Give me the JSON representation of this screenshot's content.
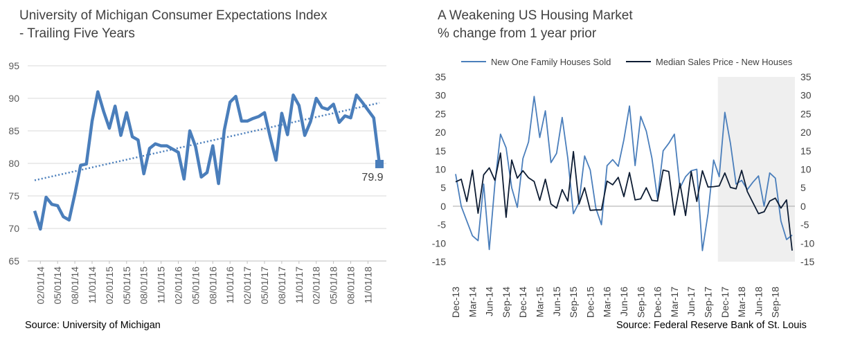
{
  "left": {
    "title_line1": "University of Michigan Consumer Expectations Index",
    "title_line2": "- Trailing Five Years",
    "source": "Source: University of Michigan",
    "end_label": "79.9",
    "colors": {
      "line": "#4a7ebb",
      "trend": "#4a7ebb"
    }
  },
  "right": {
    "title_line1": "A Weakening US Housing Market",
    "title_line2": "% change from 1 year prior",
    "source": "Source: Federal Reserve Bank of St. Louis",
    "colors": {
      "sold": "#4a7ebb",
      "price": "#0d1c33",
      "shade": "#efefef"
    }
  },
  "chart_data": [
    {
      "type": "line",
      "title": "University of Michigan Consumer Expectations Index - Trailing Five Years",
      "ylim": [
        65,
        95
      ],
      "yticks": [
        65,
        70,
        75,
        80,
        85,
        90,
        95
      ],
      "grid": true,
      "x_tick_labels": [
        "02/01/14",
        "05/01/14",
        "08/01/14",
        "11/01/14",
        "02/01/15",
        "05/01/15",
        "08/01/15",
        "11/01/15",
        "02/01/16",
        "05/01/16",
        "08/01/16",
        "11/01/16",
        "02/01/17",
        "05/01/17",
        "08/01/17",
        "11/01/17",
        "02/01/18",
        "05/01/18",
        "08/01/18",
        "11/01/18"
      ],
      "x_start": "01/01/14",
      "x_end": "12/01/18",
      "series": [
        {
          "values": [
            72.7,
            69.9,
            74.8,
            73.7,
            73.5,
            71.8,
            71.3,
            75.3,
            79.7,
            79.9,
            86.5,
            91.0,
            88.0,
            85.4,
            88.8,
            84.3,
            87.8,
            84.1,
            83.6,
            78.4,
            82.3,
            83.0,
            82.7,
            82.7,
            82.2,
            81.7,
            77.6,
            85.0,
            82.6,
            77.9,
            78.6,
            82.7,
            76.9,
            85.1,
            89.4,
            90.3,
            86.5,
            86.5,
            86.9,
            87.2,
            87.8,
            84.0,
            80.5,
            87.7,
            84.4,
            90.5,
            88.9,
            84.3,
            86.4,
            90.0,
            88.6,
            88.3,
            89.1,
            86.3,
            87.3,
            87.0,
            90.5,
            89.4,
            88.2,
            87.0,
            79.9
          ],
          "trendline": {
            "start": 77.4,
            "end": 89.3,
            "style": "dotted"
          }
        }
      ]
    },
    {
      "type": "line",
      "title": "A Weakening US Housing Market % change from 1 year prior",
      "ylim": [
        -15,
        35
      ],
      "yticks": [
        -15,
        -10,
        -5,
        0,
        5,
        10,
        15,
        20,
        25,
        30,
        35
      ],
      "grid": false,
      "legend": "top",
      "x_tick_labels": [
        "Dec-13",
        "Mar-14",
        "Jun-14",
        "Sep-14",
        "Dec-14",
        "Mar-15",
        "Jun-15",
        "Sep-15",
        "Dec-15",
        "Mar-16",
        "Jun-16",
        "Sep-16",
        "Dec-16",
        "Mar-17",
        "Jun-17",
        "Sep-17",
        "Dec-17",
        "Mar-18",
        "Jun-18",
        "Sep-18"
      ],
      "x_start": "Dec-13",
      "x_end": "Nov-18",
      "shaded_region": {
        "from": "Nov-17",
        "to": "Nov-18"
      },
      "series": [
        {
          "name": "New One Family Houses Sold",
          "values": [
            8.7,
            0.0,
            -4.0,
            -8.0,
            -9.3,
            6.0,
            -11.7,
            6.0,
            19.5,
            15.8,
            5.0,
            -0.3,
            12.9,
            17.4,
            29.7,
            18.6,
            25.8,
            11.8,
            14.3,
            24.0,
            13.0,
            -2.0,
            1.0,
            13.6,
            9.8,
            -0.5,
            -5.0,
            11.0,
            12.6,
            10.8,
            18.0,
            27.1,
            11.0,
            24.3,
            20.3,
            13.0,
            2.0,
            15.0,
            17.0,
            19.5,
            5.0,
            8.0,
            9.6,
            10.0,
            -12.0,
            -2.0,
            12.5,
            8.0,
            25.4,
            17.0,
            6.0,
            7.0,
            4.5,
            6.5,
            8.2,
            0.0,
            9.0,
            7.6,
            -4.0,
            -9.0,
            -7.8
          ]
        },
        {
          "name": "Median Sales Price - New Houses",
          "values": [
            6.6,
            7.3,
            1.3,
            9.8,
            -1.9,
            8.5,
            10.4,
            7.0,
            14.4,
            -3.0,
            12.5,
            7.6,
            9.6,
            7.7,
            6.7,
            1.6,
            7.3,
            0.6,
            -0.5,
            4.5,
            1.4,
            14.8,
            0.6,
            5.0,
            -1.1,
            -1.0,
            -1.0,
            6.8,
            5.8,
            7.8,
            2.6,
            9.1,
            1.7,
            2.0,
            5.0,
            1.6,
            1.4,
            9.8,
            9.4,
            -2.4,
            6.2,
            -2.5,
            9.4,
            1.3,
            9.6,
            5.2,
            5.3,
            5.5,
            9.0,
            5.1,
            4.7,
            9.7,
            4.0,
            1.0,
            -2.0,
            -1.5,
            1.4,
            2.2,
            -0.5,
            1.7,
            -12.0
          ]
        }
      ]
    }
  ]
}
